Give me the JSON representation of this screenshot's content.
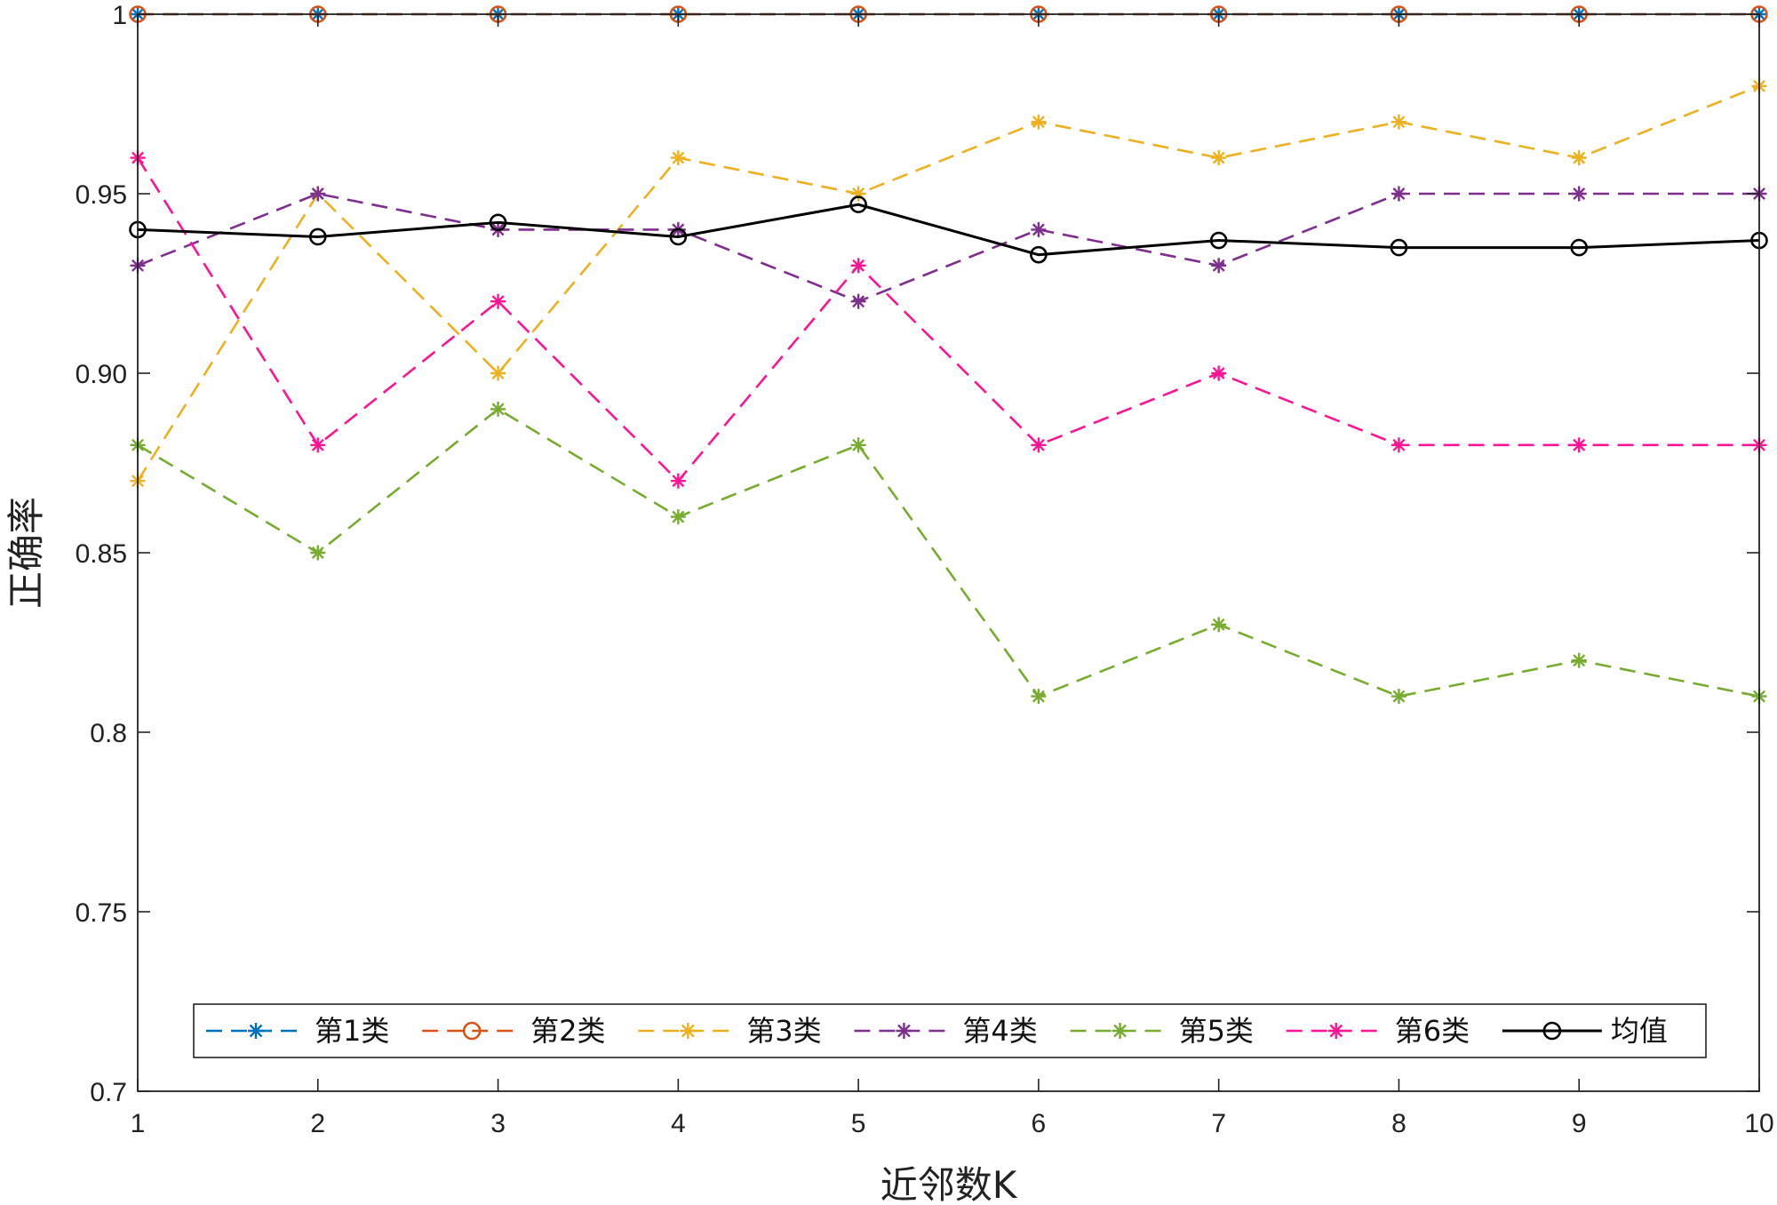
{
  "chart_data": {
    "type": "line",
    "xlabel": "近邻数K",
    "ylabel": "正确率",
    "xlim": [
      1,
      10
    ],
    "ylim": [
      0.7,
      1.0
    ],
    "x": [
      1,
      2,
      3,
      4,
      5,
      6,
      7,
      8,
      9,
      10
    ],
    "x_ticks": [
      "1",
      "2",
      "3",
      "4",
      "5",
      "6",
      "7",
      "8",
      "9",
      "10"
    ],
    "y_ticks": [
      {
        "value": 0.7,
        "label": "0.7"
      },
      {
        "value": 0.75,
        "label": "0.75"
      },
      {
        "value": 0.8,
        "label": "0.8"
      },
      {
        "value": 0.85,
        "label": "0.85"
      },
      {
        "value": 0.9,
        "label": "0.90"
      },
      {
        "value": 0.95,
        "label": "0.95"
      },
      {
        "value": 1.0,
        "label": "1"
      }
    ],
    "grid": false,
    "legend_position": "bottom, horizontal",
    "series": [
      {
        "name": "第1类",
        "color": "#0072BD",
        "marker": "asterisk",
        "dash": true,
        "values": [
          1,
          1,
          1,
          1,
          1,
          1,
          1,
          1,
          1,
          1
        ]
      },
      {
        "name": "第2类",
        "color": "#D95319",
        "marker": "circle",
        "dash": true,
        "values": [
          1,
          1,
          1,
          1,
          1,
          1,
          1,
          1,
          1,
          1
        ]
      },
      {
        "name": "第3类",
        "color": "#EDB120",
        "marker": "asterisk",
        "dash": true,
        "values": [
          0.87,
          0.95,
          0.9,
          0.96,
          0.95,
          0.97,
          0.96,
          0.97,
          0.96,
          0.98
        ]
      },
      {
        "name": "第4类",
        "color": "#7E2F8E",
        "marker": "asterisk",
        "dash": true,
        "values": [
          0.93,
          0.95,
          0.94,
          0.94,
          0.92,
          0.94,
          0.93,
          0.95,
          0.95,
          0.95
        ]
      },
      {
        "name": "第5类",
        "color": "#77AC30",
        "marker": "asterisk",
        "dash": true,
        "values": [
          0.88,
          0.85,
          0.89,
          0.86,
          0.88,
          0.81,
          0.83,
          0.81,
          0.82,
          0.81
        ]
      },
      {
        "name": "第6类",
        "color": "#FF1493",
        "marker": "asterisk",
        "dash": true,
        "values": [
          0.96,
          0.88,
          0.92,
          0.87,
          0.93,
          0.88,
          0.9,
          0.88,
          0.88,
          0.88
        ]
      },
      {
        "name": "均值",
        "color": "#000000",
        "marker": "circle",
        "dash": false,
        "values": [
          0.94,
          0.938,
          0.942,
          0.938,
          0.947,
          0.933,
          0.937,
          0.935,
          0.935,
          0.937
        ]
      }
    ]
  }
}
